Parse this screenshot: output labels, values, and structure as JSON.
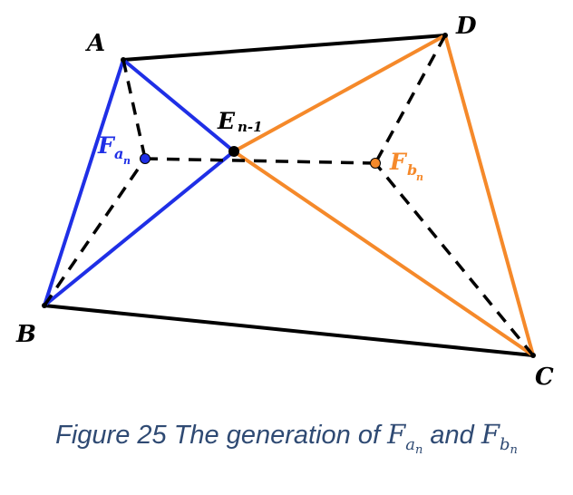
{
  "points": {
    "A": {
      "label": "A"
    },
    "B": {
      "label": "B"
    },
    "C": {
      "label": "C"
    },
    "D": {
      "label": "D"
    },
    "E": {
      "label": "E",
      "sub": "n-1"
    },
    "Fa": {
      "label": "F",
      "sub": "a",
      "subsub": "n"
    },
    "Fb": {
      "label": "F",
      "sub": "b",
      "subsub": "n"
    }
  },
  "colors": {
    "outline": "#000000",
    "blue": "#1f2fe6",
    "orange": "#f5892a",
    "caption": "#2f4a73"
  },
  "caption": {
    "prefix": "Figure 25 The generation of ",
    "F1": "F",
    "F1_sub": "a",
    "F1_subsub": "n",
    "middle": " and ",
    "F2": "F",
    "F2_sub": "b",
    "F2_subsub": "n"
  }
}
